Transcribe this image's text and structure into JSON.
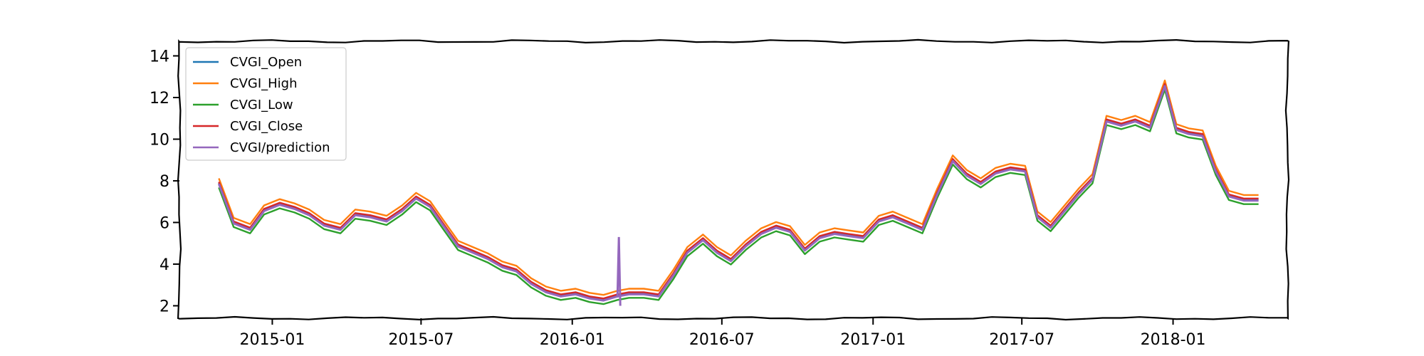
{
  "chart_data": {
    "type": "line",
    "title": "",
    "xlabel": "",
    "ylabel": "",
    "x_range": [
      "2014-09-10",
      "2018-05-20"
    ],
    "ylim": [
      1.4,
      14.7
    ],
    "grid": false,
    "legend_position": "top-left",
    "x_ticks": [
      {
        "date": "2015-01-01",
        "label": "2015-01"
      },
      {
        "date": "2015-07-01",
        "label": "2015-07"
      },
      {
        "date": "2016-01-01",
        "label": "2016-01"
      },
      {
        "date": "2016-07-01",
        "label": "2016-07"
      },
      {
        "date": "2017-01-01",
        "label": "2017-01"
      },
      {
        "date": "2017-07-01",
        "label": "2017-07"
      },
      {
        "date": "2018-01-01",
        "label": "2018-01"
      }
    ],
    "y_ticks": [
      2,
      4,
      6,
      8,
      10,
      12,
      14
    ],
    "dates": [
      "2014-10-28",
      "2014-11-15",
      "2014-12-05",
      "2014-12-22",
      "2015-01-10",
      "2015-01-28",
      "2015-02-15",
      "2015-03-05",
      "2015-03-25",
      "2015-04-12",
      "2015-04-30",
      "2015-05-20",
      "2015-06-08",
      "2015-06-25",
      "2015-07-12",
      "2015-07-28",
      "2015-08-15",
      "2015-09-02",
      "2015-09-20",
      "2015-10-08",
      "2015-10-25",
      "2015-11-12",
      "2015-11-30",
      "2015-12-18",
      "2016-01-05",
      "2016-01-22",
      "2016-02-08",
      "2016-02-25",
      "2016-03-10",
      "2016-03-28",
      "2016-04-15",
      "2016-05-03",
      "2016-05-20",
      "2016-06-08",
      "2016-06-25",
      "2016-07-12",
      "2016-07-30",
      "2016-08-18",
      "2016-09-05",
      "2016-09-22",
      "2016-10-10",
      "2016-10-28",
      "2016-11-15",
      "2016-12-02",
      "2016-12-20",
      "2017-01-08",
      "2017-01-25",
      "2017-02-12",
      "2017-03-02",
      "2017-03-20",
      "2017-04-08",
      "2017-04-25",
      "2017-05-12",
      "2017-05-30",
      "2017-06-17",
      "2017-07-05",
      "2017-07-20",
      "2017-08-05",
      "2017-08-22",
      "2017-09-08",
      "2017-09-25",
      "2017-10-12",
      "2017-10-30",
      "2017-11-16",
      "2017-12-04",
      "2017-12-22",
      "2018-01-05",
      "2018-01-20",
      "2018-02-06",
      "2018-02-22",
      "2018-03-10",
      "2018-03-28",
      "2018-04-15"
    ],
    "series": [
      {
        "name": "CVGI_Open",
        "color": "#1f77b4",
        "offset": 0.0
      },
      {
        "name": "CVGI_High",
        "color": "#ff7f0e",
        "offset": 0.22
      },
      {
        "name": "CVGI_Low",
        "color": "#2ca02c",
        "offset": -0.22
      },
      {
        "name": "CVGI_Close",
        "color": "#d62728",
        "offset": 0.05
      },
      {
        "name": "CVGI/prediction",
        "color": "#9467bd",
        "offset": -0.05
      }
    ],
    "base_values": [
      7.9,
      6.0,
      5.7,
      6.6,
      6.9,
      6.7,
      6.4,
      5.9,
      5.7,
      6.4,
      6.3,
      6.1,
      6.6,
      7.2,
      6.8,
      5.9,
      4.9,
      4.6,
      4.3,
      3.9,
      3.7,
      3.1,
      2.7,
      2.5,
      2.6,
      2.4,
      2.3,
      2.5,
      2.6,
      2.6,
      2.5,
      3.5,
      4.6,
      5.2,
      4.6,
      4.2,
      4.9,
      5.5,
      5.8,
      5.6,
      4.7,
      5.3,
      5.5,
      5.4,
      5.3,
      6.1,
      6.3,
      6.0,
      5.7,
      7.4,
      9.0,
      8.3,
      7.9,
      8.4,
      8.6,
      8.5,
      6.3,
      5.8,
      6.6,
      7.4,
      8.1,
      10.9,
      10.7,
      10.9,
      10.6,
      12.6,
      10.5,
      10.3,
      10.2,
      8.5,
      7.3,
      7.1,
      7.1
    ]
  },
  "legend": {
    "entries": [
      {
        "label": "CVGI_Open",
        "color": "#1f77b4"
      },
      {
        "label": "CVGI_High",
        "color": "#ff7f0e"
      },
      {
        "label": "CVGI_Low",
        "color": "#2ca02c"
      },
      {
        "label": "CVGI_Close",
        "color": "#d62728"
      },
      {
        "label": "CVGI/prediction",
        "color": "#9467bd"
      }
    ]
  }
}
